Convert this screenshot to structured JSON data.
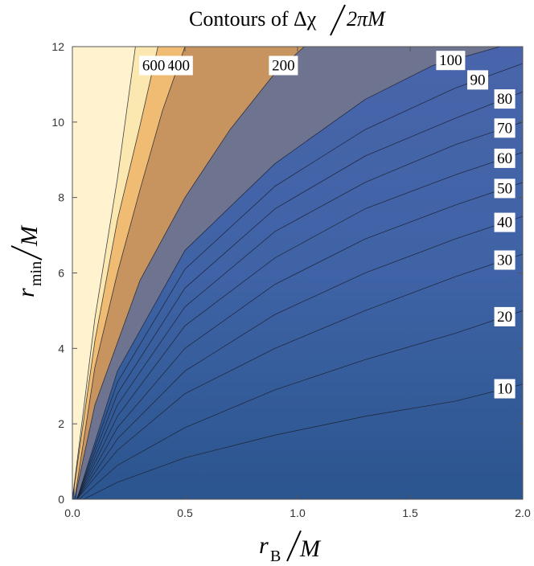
{
  "chart_data": {
    "type": "contour",
    "title": {
      "prefix": "Contours of ",
      "numerator": "Δχ",
      "denominator": "2πM"
    },
    "xlabel": {
      "symbol": "r",
      "subscript": "B",
      "denominator": "M"
    },
    "ylabel": {
      "symbol": "r",
      "subscript": "min",
      "denominator": "M"
    },
    "xlim": [
      0,
      2
    ],
    "ylim": [
      0,
      12
    ],
    "xticks": [
      "0.0",
      "0.5",
      "1.0",
      "1.5",
      "2.0"
    ],
    "yticks": [
      "0",
      "2",
      "4",
      "6",
      "8",
      "10",
      "12"
    ],
    "contours": [
      {
        "level": 10,
        "label": "10",
        "points": [
          [
            0.05,
            0.0
          ],
          [
            0.2,
            0.45
          ],
          [
            0.5,
            1.1
          ],
          [
            0.9,
            1.7
          ],
          [
            1.3,
            2.2
          ],
          [
            1.7,
            2.6
          ],
          [
            2.0,
            3.05
          ]
        ]
      },
      {
        "level": 20,
        "label": "20",
        "points": [
          [
            0.03,
            0.0
          ],
          [
            0.2,
            0.9
          ],
          [
            0.5,
            1.9
          ],
          [
            0.9,
            2.9
          ],
          [
            1.3,
            3.7
          ],
          [
            1.7,
            4.4
          ],
          [
            2.0,
            5.0
          ]
        ]
      },
      {
        "level": 30,
        "label": "30",
        "points": [
          [
            0.02,
            0.0
          ],
          [
            0.2,
            1.3
          ],
          [
            0.5,
            2.8
          ],
          [
            0.9,
            4.0
          ],
          [
            1.3,
            5.0
          ],
          [
            1.7,
            5.9
          ],
          [
            2.0,
            6.5
          ]
        ]
      },
      {
        "level": 40,
        "label": "40",
        "points": [
          [
            0.02,
            0.0
          ],
          [
            0.2,
            1.6
          ],
          [
            0.5,
            3.4
          ],
          [
            0.9,
            4.9
          ],
          [
            1.3,
            6.0
          ],
          [
            1.7,
            6.9
          ],
          [
            2.0,
            7.5
          ]
        ]
      },
      {
        "level": 50,
        "label": "50",
        "points": [
          [
            0.02,
            0.0
          ],
          [
            0.2,
            1.9
          ],
          [
            0.5,
            4.0
          ],
          [
            0.9,
            5.7
          ],
          [
            1.3,
            6.9
          ],
          [
            1.7,
            7.8
          ],
          [
            2.0,
            8.4
          ]
        ]
      },
      {
        "level": 60,
        "label": "60",
        "points": [
          [
            0.02,
            0.0
          ],
          [
            0.2,
            2.2
          ],
          [
            0.5,
            4.6
          ],
          [
            0.9,
            6.4
          ],
          [
            1.3,
            7.7
          ],
          [
            1.7,
            8.6
          ],
          [
            2.0,
            9.2
          ]
        ]
      },
      {
        "level": 70,
        "label": "70",
        "points": [
          [
            0.02,
            0.0
          ],
          [
            0.2,
            2.5
          ],
          [
            0.5,
            5.1
          ],
          [
            0.9,
            7.1
          ],
          [
            1.3,
            8.4
          ],
          [
            1.7,
            9.4
          ],
          [
            2.0,
            10.0
          ]
        ]
      },
      {
        "level": 80,
        "label": "80",
        "points": [
          [
            0.02,
            0.0
          ],
          [
            0.2,
            2.8
          ],
          [
            0.5,
            5.6
          ],
          [
            0.9,
            7.7
          ],
          [
            1.3,
            9.1
          ],
          [
            1.7,
            10.1
          ],
          [
            2.0,
            10.8
          ]
        ]
      },
      {
        "level": 90,
        "label": "90",
        "points": [
          [
            0.02,
            0.0
          ],
          [
            0.2,
            3.1
          ],
          [
            0.5,
            6.1
          ],
          [
            0.9,
            8.3
          ],
          [
            1.3,
            9.8
          ],
          [
            1.7,
            10.9
          ],
          [
            1.93,
            11.4
          ],
          [
            2.0,
            11.55
          ]
        ]
      },
      {
        "level": 100,
        "label": "100",
        "points": [
          [
            0.02,
            0.0
          ],
          [
            0.2,
            3.4
          ],
          [
            0.5,
            6.6
          ],
          [
            0.9,
            8.9
          ],
          [
            1.3,
            10.6
          ],
          [
            1.6,
            11.5
          ],
          [
            1.9,
            12.0
          ]
        ]
      },
      {
        "level": 200,
        "label": "200",
        "points": [
          [
            0.01,
            0.0
          ],
          [
            0.1,
            2.5
          ],
          [
            0.3,
            5.8
          ],
          [
            0.5,
            8.0
          ],
          [
            0.7,
            9.8
          ],
          [
            0.9,
            11.3
          ],
          [
            1.03,
            12.0
          ]
        ]
      },
      {
        "level": 400,
        "label": "400",
        "points": [
          [
            0.01,
            0.0
          ],
          [
            0.1,
            3.5
          ],
          [
            0.2,
            6.0
          ],
          [
            0.3,
            8.2
          ],
          [
            0.4,
            10.3
          ],
          [
            0.5,
            12.0
          ]
        ]
      },
      {
        "level": 600,
        "label": "600",
        "points": [
          [
            0.0,
            0.0
          ],
          [
            0.1,
            4.2
          ],
          [
            0.2,
            7.4
          ],
          [
            0.3,
            9.9
          ],
          [
            0.38,
            12.0
          ]
        ]
      },
      {
        "level": 800,
        "label": "",
        "points": [
          [
            0.0,
            0.0
          ],
          [
            0.1,
            4.8
          ],
          [
            0.2,
            8.5
          ],
          [
            0.28,
            12.0
          ]
        ]
      }
    ],
    "colors": {
      "low": "#2b558e",
      "blue_mid": "#3f63a6",
      "blue_high": "#4964aa",
      "slate": "#6e7490",
      "tan": "#c79460",
      "orange": "#f0bb72",
      "pale": "#fbe8b0",
      "cream": "#fff3cf"
    }
  }
}
